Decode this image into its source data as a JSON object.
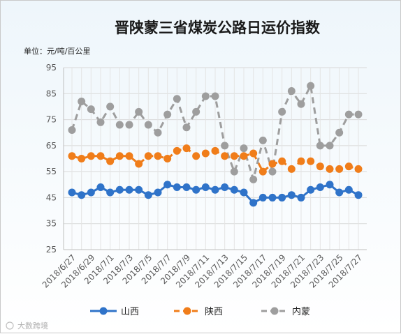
{
  "chart_data": {
    "type": "line",
    "title": "晋陕蒙三省煤炭公路日运价指数",
    "unit_label": "单位：元/吨/百公里",
    "ylim": [
      25,
      95
    ],
    "yticks": [
      25,
      35,
      45,
      55,
      65,
      75,
      85,
      95
    ],
    "grid": true,
    "legend_position": "bottom",
    "x": [
      "2018/6/27",
      "2018/6/28",
      "2018/6/29",
      "2018/6/30",
      "2018/7/1",
      "2018/7/2",
      "2018/7/3",
      "2018/7/4",
      "2018/7/5",
      "2018/7/6",
      "2018/7/7",
      "2018/7/8",
      "2018/7/9",
      "2018/7/10",
      "2018/7/11",
      "2018/7/12",
      "2018/7/13",
      "2018/7/14",
      "2018/7/15",
      "2018/7/16",
      "2018/7/17",
      "2018/7/18",
      "2018/7/19",
      "2018/7/20",
      "2018/7/21",
      "2018/7/22",
      "2018/7/23",
      "2018/7/24",
      "2018/7/25",
      "2018/7/26",
      "2018/7/27"
    ],
    "xtick_labels": [
      "2018/6/27",
      "2018/6/29",
      "2018/7/1",
      "2018/7/3",
      "2018/7/5",
      "2018/7/7",
      "2018/7/9",
      "2018/7/11",
      "2018/7/13",
      "2018/7/15",
      "2018/7/17",
      "2018/7/19",
      "2018/7/21",
      "2018/7/23",
      "2018/7/25",
      "2018/7/27"
    ],
    "series": [
      {
        "name": "山西",
        "color": "#2f73c9",
        "dash": "solid",
        "values": [
          47,
          46,
          47,
          49,
          47,
          48,
          48,
          48,
          46,
          47,
          50,
          49,
          49,
          48,
          49,
          48,
          49,
          48,
          47,
          43,
          45,
          45,
          45,
          46,
          45,
          48,
          49,
          50,
          47,
          48,
          46
        ]
      },
      {
        "name": "陕西",
        "color": "#f07d1a",
        "dash": "dashed",
        "values": [
          61,
          60,
          61,
          61,
          59,
          61,
          61,
          58,
          61,
          61,
          60,
          63,
          64,
          61,
          62,
          63,
          61,
          61,
          61,
          62,
          55,
          58,
          59,
          56,
          59,
          59,
          57,
          56,
          56,
          57,
          56
        ]
      },
      {
        "name": "内蒙",
        "color": "#9e9e9e",
        "dash": "dashed",
        "values": [
          71,
          82,
          79,
          74,
          80,
          73,
          73,
          78,
          73,
          70,
          77,
          83,
          72,
          78,
          84,
          84,
          65,
          55,
          64,
          52,
          67,
          55,
          78,
          86,
          81,
          88,
          65,
          65,
          70,
          77,
          77
        ]
      }
    ]
  },
  "watermark": "大数跨境"
}
